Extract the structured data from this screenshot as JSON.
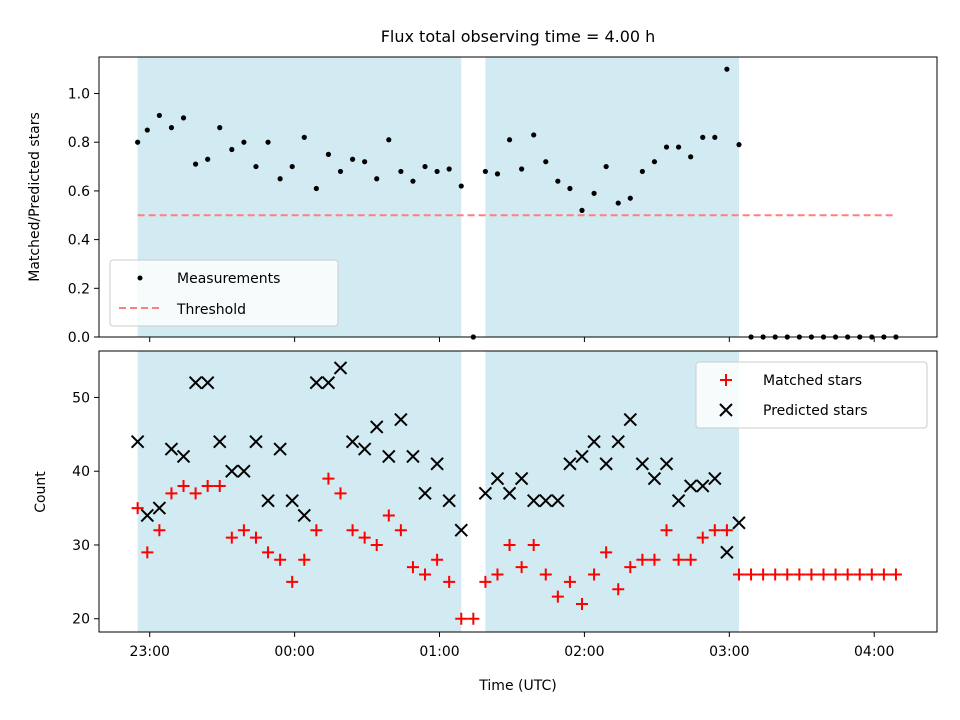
{
  "chart_data": [
    {
      "type": "scatter",
      "title": "Flux total observing time = 4.00 h",
      "ylabel": "Matched/Predicted stars",
      "xlabel": "",
      "ylim": [
        0,
        1.15
      ],
      "yticks": [
        "0.0",
        "0.2",
        "0.4",
        "0.6",
        "0.8",
        "1.0"
      ],
      "threshold": 0.5,
      "threshold_color": "#ff7f7f",
      "shade_color": "#add8e6",
      "legend": {
        "placement": "lower-left",
        "entries": [
          "Measurements",
          "Threshold"
        ]
      },
      "series": [
        {
          "name": "Measurements",
          "color": "#000000",
          "points": [
            [
              "22:55",
              0.8
            ],
            [
              "22:59",
              0.85
            ],
            [
              "23:04",
              0.91
            ],
            [
              "23:09",
              0.86
            ],
            [
              "23:14",
              0.9
            ],
            [
              "23:19",
              0.71
            ],
            [
              "23:24",
              0.73
            ],
            [
              "23:29",
              0.86
            ],
            [
              "23:34",
              0.77
            ],
            [
              "23:39",
              0.8
            ],
            [
              "23:44",
              0.7
            ],
            [
              "23:49",
              0.8
            ],
            [
              "23:54",
              0.65
            ],
            [
              "23:59",
              0.7
            ],
            [
              "00:04",
              0.82
            ],
            [
              "00:09",
              0.61
            ],
            [
              "00:14",
              0.75
            ],
            [
              "00:19",
              0.68
            ],
            [
              "00:24",
              0.73
            ],
            [
              "00:29",
              0.72
            ],
            [
              "00:34",
              0.65
            ],
            [
              "00:39",
              0.81
            ],
            [
              "00:44",
              0.68
            ],
            [
              "00:49",
              0.64
            ],
            [
              "00:54",
              0.7
            ],
            [
              "00:59",
              0.68
            ],
            [
              "01:04",
              0.69
            ],
            [
              "01:09",
              0.62
            ],
            [
              "01:14",
              0.0
            ],
            [
              "01:19",
              0.68
            ],
            [
              "01:24",
              0.67
            ],
            [
              "01:29",
              0.81
            ],
            [
              "01:34",
              0.69
            ],
            [
              "01:39",
              0.83
            ],
            [
              "01:44",
              0.72
            ],
            [
              "01:49",
              0.64
            ],
            [
              "01:54",
              0.61
            ],
            [
              "01:59",
              0.52
            ],
            [
              "02:04",
              0.59
            ],
            [
              "02:09",
              0.7
            ],
            [
              "02:14",
              0.55
            ],
            [
              "02:19",
              0.57
            ],
            [
              "02:24",
              0.68
            ],
            [
              "02:29",
              0.72
            ],
            [
              "02:34",
              0.78
            ],
            [
              "02:39",
              0.78
            ],
            [
              "02:44",
              0.74
            ],
            [
              "02:49",
              0.82
            ],
            [
              "02:54",
              0.82
            ],
            [
              "02:59",
              1.1
            ],
            [
              "03:04",
              0.79
            ],
            [
              "03:09",
              0.0
            ],
            [
              "03:14",
              0.0
            ],
            [
              "03:19",
              0.0
            ],
            [
              "03:24",
              0.0
            ],
            [
              "03:29",
              0.0
            ],
            [
              "03:34",
              0.0
            ],
            [
              "03:39",
              0.0
            ],
            [
              "03:44",
              0.0
            ],
            [
              "03:49",
              0.0
            ],
            [
              "03:54",
              0.0
            ],
            [
              "03:59",
              0.0
            ],
            [
              "04:04",
              0.0
            ],
            [
              "04:09",
              0.0
            ]
          ]
        }
      ]
    },
    {
      "type": "scatter",
      "ylabel": "Count",
      "xlabel": "Time (UTC)",
      "ylim": [
        18.2,
        56.3
      ],
      "yticks": [
        "20",
        "30",
        "40",
        "50"
      ],
      "xticks": [
        "23:00",
        "00:00",
        "01:00",
        "02:00",
        "03:00",
        "04:00"
      ],
      "shade_color": "#add8e6",
      "legend": {
        "placement": "upper-right",
        "entries": [
          "Matched stars",
          "Predicted stars"
        ]
      },
      "series": [
        {
          "name": "Matched stars",
          "marker": "plus",
          "color": "#ff0000",
          "points": [
            [
              "22:55",
              35
            ],
            [
              "22:59",
              29
            ],
            [
              "23:04",
              32
            ],
            [
              "23:09",
              37
            ],
            [
              "23:14",
              38
            ],
            [
              "23:19",
              37
            ],
            [
              "23:24",
              38
            ],
            [
              "23:29",
              38
            ],
            [
              "23:34",
              31
            ],
            [
              "23:39",
              32
            ],
            [
              "23:44",
              31
            ],
            [
              "23:49",
              29
            ],
            [
              "23:54",
              28
            ],
            [
              "23:59",
              25
            ],
            [
              "00:04",
              28
            ],
            [
              "00:09",
              32
            ],
            [
              "00:14",
              39
            ],
            [
              "00:19",
              37
            ],
            [
              "00:24",
              32
            ],
            [
              "00:29",
              31
            ],
            [
              "00:34",
              30
            ],
            [
              "00:39",
              34
            ],
            [
              "00:44",
              32
            ],
            [
              "00:49",
              27
            ],
            [
              "00:54",
              26
            ],
            [
              "00:59",
              28
            ],
            [
              "01:04",
              25
            ],
            [
              "01:09",
              20
            ],
            [
              "01:14",
              20
            ],
            [
              "01:19",
              25
            ],
            [
              "01:24",
              26
            ],
            [
              "01:29",
              30
            ],
            [
              "01:34",
              27
            ],
            [
              "01:39",
              30
            ],
            [
              "01:44",
              26
            ],
            [
              "01:49",
              23
            ],
            [
              "01:54",
              25
            ],
            [
              "01:59",
              22
            ],
            [
              "02:04",
              26
            ],
            [
              "02:09",
              29
            ],
            [
              "02:14",
              24
            ],
            [
              "02:19",
              27
            ],
            [
              "02:24",
              28
            ],
            [
              "02:29",
              28
            ],
            [
              "02:34",
              32
            ],
            [
              "02:39",
              28
            ],
            [
              "02:44",
              28
            ],
            [
              "02:49",
              31
            ],
            [
              "02:54",
              32
            ],
            [
              "02:59",
              32
            ],
            [
              "03:04",
              26
            ],
            [
              "03:09",
              26
            ],
            [
              "03:14",
              26
            ],
            [
              "03:19",
              26
            ],
            [
              "03:24",
              26
            ],
            [
              "03:29",
              26
            ],
            [
              "03:34",
              26
            ],
            [
              "03:39",
              26
            ],
            [
              "03:44",
              26
            ],
            [
              "03:49",
              26
            ],
            [
              "03:54",
              26
            ],
            [
              "03:59",
              26
            ],
            [
              "04:04",
              26
            ],
            [
              "04:09",
              26
            ]
          ]
        },
        {
          "name": "Predicted stars",
          "marker": "x",
          "color": "#000000",
          "points": [
            [
              "22:55",
              44
            ],
            [
              "22:59",
              34
            ],
            [
              "23:04",
              35
            ],
            [
              "23:09",
              43
            ],
            [
              "23:14",
              42
            ],
            [
              "23:19",
              52
            ],
            [
              "23:24",
              52
            ],
            [
              "23:29",
              44
            ],
            [
              "23:34",
              40
            ],
            [
              "23:39",
              40
            ],
            [
              "23:44",
              44
            ],
            [
              "23:49",
              36
            ],
            [
              "23:54",
              43
            ],
            [
              "23:59",
              36
            ],
            [
              "00:04",
              34
            ],
            [
              "00:09",
              52
            ],
            [
              "00:14",
              52
            ],
            [
              "00:19",
              54
            ],
            [
              "00:24",
              44
            ],
            [
              "00:29",
              43
            ],
            [
              "00:34",
              46
            ],
            [
              "00:39",
              42
            ],
            [
              "00:44",
              47
            ],
            [
              "00:49",
              42
            ],
            [
              "00:54",
              37
            ],
            [
              "00:59",
              41
            ],
            [
              "01:04",
              36
            ],
            [
              "01:09",
              32
            ],
            [
              "01:19",
              37
            ],
            [
              "01:24",
              39
            ],
            [
              "01:29",
              37
            ],
            [
              "01:34",
              39
            ],
            [
              "01:39",
              36
            ],
            [
              "01:44",
              36
            ],
            [
              "01:49",
              36
            ],
            [
              "01:54",
              41
            ],
            [
              "01:59",
              42
            ],
            [
              "02:04",
              44
            ],
            [
              "02:09",
              41
            ],
            [
              "02:14",
              44
            ],
            [
              "02:19",
              47
            ],
            [
              "02:24",
              41
            ],
            [
              "02:29",
              39
            ],
            [
              "02:34",
              41
            ],
            [
              "02:39",
              36
            ],
            [
              "02:44",
              38
            ],
            [
              "02:49",
              38
            ],
            [
              "02:54",
              39
            ],
            [
              "02:59",
              29
            ],
            [
              "03:04",
              33
            ]
          ]
        }
      ]
    }
  ],
  "shaded_intervals": [
    [
      "22:55",
      "01:09"
    ],
    [
      "01:19",
      "03:04"
    ]
  ],
  "x_domain": [
    "22:39",
    "04:26"
  ]
}
